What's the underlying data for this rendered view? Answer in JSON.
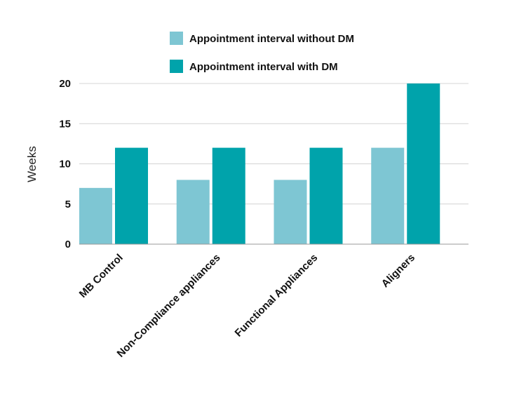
{
  "chart_data": {
    "type": "bar",
    "categories": [
      "MB Control",
      "Non-Compliance appliances",
      "Functional Appliances",
      "Aligners"
    ],
    "series": [
      {
        "name": "Appointment interval without DM",
        "values": [
          7,
          8,
          8,
          12
        ],
        "color": "#7ec6d3"
      },
      {
        "name": "Appointment interval with DM",
        "values": [
          12,
          12,
          12,
          20
        ],
        "color": "#00a3ab"
      }
    ],
    "ylabel": "Weeks",
    "ylim": [
      0,
      20
    ],
    "yticks": [
      0,
      5,
      10,
      15,
      20
    ],
    "grid": true,
    "legend_position": "top"
  }
}
